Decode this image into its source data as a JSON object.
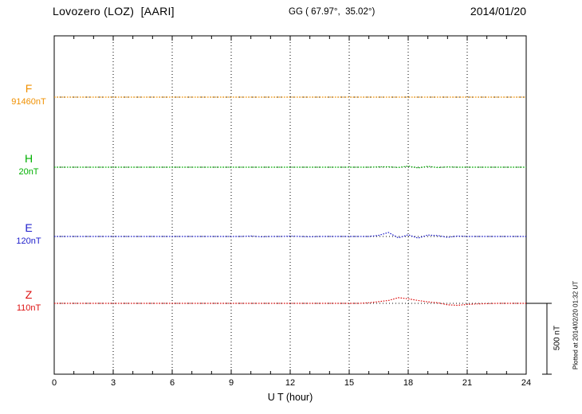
{
  "header": {
    "station": "Lovozero (LOZ)  [AARI]",
    "coords": "GG ( 67.97°,  35.02°)",
    "date": "2014/01/20"
  },
  "channels": [
    {
      "name": "F",
      "baseline_label": "91460nT",
      "color": "#f09000"
    },
    {
      "name": "H",
      "baseline_label": "20nT",
      "color": "#00b000"
    },
    {
      "name": "E",
      "baseline_label": "120nT",
      "color": "#2020cc"
    },
    {
      "name": "Z",
      "baseline_label": "110nT",
      "color": "#dd1010"
    }
  ],
  "xaxis": {
    "label": "U T (hour)",
    "ticks": [
      "0",
      "3",
      "6",
      "9",
      "12",
      "15",
      "18",
      "21",
      "24"
    ]
  },
  "scale_bar": {
    "label": "500 nT"
  },
  "footer_note": "Plotted at 2014/02/20 01:32 UT",
  "chart_data": {
    "type": "line",
    "title": "Lovozero (LOZ) [AARI] magnetogram, 2014/01/20",
    "xlabel": "U T (hour)",
    "xlim": [
      0,
      24
    ],
    "xticks": [
      0,
      3,
      6,
      9,
      12,
      15,
      18,
      21,
      24
    ],
    "grid": "vertical-dotted",
    "legend_position": "left-margin",
    "scale_bar_nT": 500,
    "x": [
      0,
      0.5,
      1,
      1.5,
      2,
      2.5,
      3,
      3.5,
      4,
      4.5,
      5,
      5.5,
      6,
      6.5,
      7,
      7.5,
      8,
      8.5,
      9,
      9.5,
      10,
      10.5,
      11,
      11.5,
      12,
      12.5,
      13,
      13.5,
      14,
      14.5,
      15,
      15.5,
      16,
      16.5,
      17,
      17.5,
      18,
      18.5,
      19,
      19.5,
      20,
      20.5,
      21,
      21.5,
      22,
      22.5,
      23,
      23.5,
      24
    ],
    "series": [
      {
        "name": "F",
        "baseline_nT": 91460,
        "color": "#f09000",
        "offsets_nT": [
          0,
          0,
          0,
          0,
          0,
          0,
          0,
          0,
          0,
          0,
          0,
          0,
          0,
          0,
          0,
          0,
          0,
          0,
          0,
          0,
          0,
          0,
          0,
          0,
          0,
          0,
          0,
          0,
          0,
          0,
          0,
          0,
          0,
          0,
          0,
          0,
          0,
          0,
          0,
          0,
          0,
          0,
          0,
          0,
          0,
          0,
          0,
          0,
          0
        ]
      },
      {
        "name": "H",
        "baseline_nT": 20,
        "color": "#00b000",
        "offsets_nT": [
          0,
          0,
          0,
          0,
          0,
          0,
          0,
          0,
          0,
          0,
          0,
          0,
          0,
          0,
          0,
          0,
          0,
          0,
          0,
          0,
          0,
          0,
          0,
          0,
          0,
          0,
          0,
          0,
          0,
          0,
          0,
          0,
          0,
          2,
          3,
          -2,
          8,
          -5,
          6,
          -3,
          2,
          0,
          0,
          0,
          0,
          0,
          0,
          0,
          0
        ]
      },
      {
        "name": "E",
        "baseline_nT": 120,
        "color": "#2020cc",
        "offsets_nT": [
          0,
          0,
          0,
          0,
          0,
          0,
          0,
          0,
          0,
          0,
          0,
          0,
          0,
          0,
          0,
          0,
          0,
          0,
          0,
          0,
          3,
          -2,
          0,
          0,
          2,
          0,
          -2,
          0,
          0,
          0,
          0,
          0,
          0,
          8,
          28,
          -10,
          12,
          -12,
          10,
          6,
          -6,
          3,
          0,
          0,
          0,
          0,
          0,
          0,
          0
        ]
      },
      {
        "name": "Z",
        "baseline_nT": 110,
        "color": "#dd1010",
        "offsets_nT": [
          0,
          0,
          0,
          0,
          0,
          0,
          0,
          0,
          0,
          0,
          0,
          0,
          0,
          0,
          0,
          0,
          0,
          0,
          0,
          0,
          0,
          0,
          0,
          0,
          0,
          0,
          0,
          0,
          0,
          0,
          0,
          0,
          4,
          12,
          20,
          40,
          32,
          20,
          10,
          4,
          -10,
          -14,
          -8,
          -4,
          -2,
          0,
          0,
          0,
          0
        ]
      }
    ]
  }
}
